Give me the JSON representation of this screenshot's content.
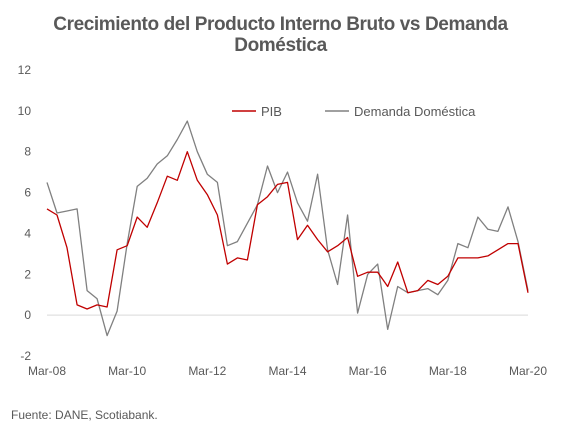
{
  "title_line1": "Crecimiento del Producto Interno Bruto  vs Demanda",
  "title_line2": "Doméstica",
  "source": "Fuente: DANE, Scotiabank.",
  "chart_data": {
    "type": "line",
    "title": "Crecimiento del Producto Interno Bruto  vs Demanda Doméstica",
    "xlabel": "",
    "ylabel": "",
    "ylim": [
      -2,
      12
    ],
    "yticks": [
      -2,
      0,
      2,
      4,
      6,
      8,
      10,
      12
    ],
    "xtick_labels": [
      "Mar-08",
      "Mar-10",
      "Mar-12",
      "Mar-14",
      "Mar-16",
      "Mar-18",
      "Mar-20"
    ],
    "grid": false,
    "legend_position": "top-right",
    "x": [
      "Mar-08",
      "Jun-08",
      "Sep-08",
      "Dec-08",
      "Mar-09",
      "Jun-09",
      "Sep-09",
      "Dec-09",
      "Mar-10",
      "Jun-10",
      "Sep-10",
      "Dec-10",
      "Mar-11",
      "Jun-11",
      "Sep-11",
      "Dec-11",
      "Mar-12",
      "Jun-12",
      "Sep-12",
      "Dec-12",
      "Mar-13",
      "Jun-13",
      "Sep-13",
      "Dec-13",
      "Mar-14",
      "Jun-14",
      "Sep-14",
      "Dec-14",
      "Mar-15",
      "Jun-15",
      "Sep-15",
      "Dec-15",
      "Mar-16",
      "Jun-16",
      "Sep-16",
      "Dec-16",
      "Mar-17",
      "Jun-17",
      "Sep-17",
      "Dec-17",
      "Mar-18",
      "Jun-18",
      "Sep-18",
      "Dec-18",
      "Mar-19",
      "Jun-19",
      "Sep-19",
      "Dec-19",
      "Mar-20"
    ],
    "series": [
      {
        "name": "PIB",
        "color": "#c00000",
        "values": [
          5.2,
          4.9,
          3.3,
          0.5,
          0.3,
          0.5,
          0.4,
          3.2,
          3.4,
          4.8,
          4.3,
          5.5,
          6.8,
          6.6,
          8.0,
          6.6,
          5.9,
          4.9,
          2.5,
          2.8,
          2.7,
          5.4,
          5.8,
          6.4,
          6.5,
          3.7,
          4.4,
          3.7,
          3.1,
          3.4,
          3.8,
          1.9,
          2.1,
          2.1,
          1.4,
          2.6,
          1.1,
          1.2,
          1.7,
          1.5,
          1.9,
          2.8,
          2.8,
          2.8,
          2.9,
          3.2,
          3.5,
          3.5,
          1.1
        ]
      },
      {
        "name": "Demanda Doméstica",
        "color": "#808080",
        "values": [
          6.5,
          5.0,
          5.1,
          5.2,
          1.2,
          0.8,
          -1.0,
          0.2,
          3.5,
          6.3,
          6.7,
          7.4,
          7.8,
          8.6,
          9.5,
          8.0,
          6.9,
          6.5,
          3.4,
          3.6,
          4.5,
          5.4,
          7.3,
          6.0,
          7.0,
          5.5,
          4.6,
          6.9,
          3.2,
          1.5,
          4.9,
          0.1,
          2.0,
          2.5,
          -0.7,
          1.4,
          1.1,
          1.2,
          1.3,
          1.0,
          1.7,
          3.5,
          3.3,
          4.8,
          4.2,
          4.1,
          5.3,
          3.6,
          1.2
        ]
      }
    ]
  }
}
